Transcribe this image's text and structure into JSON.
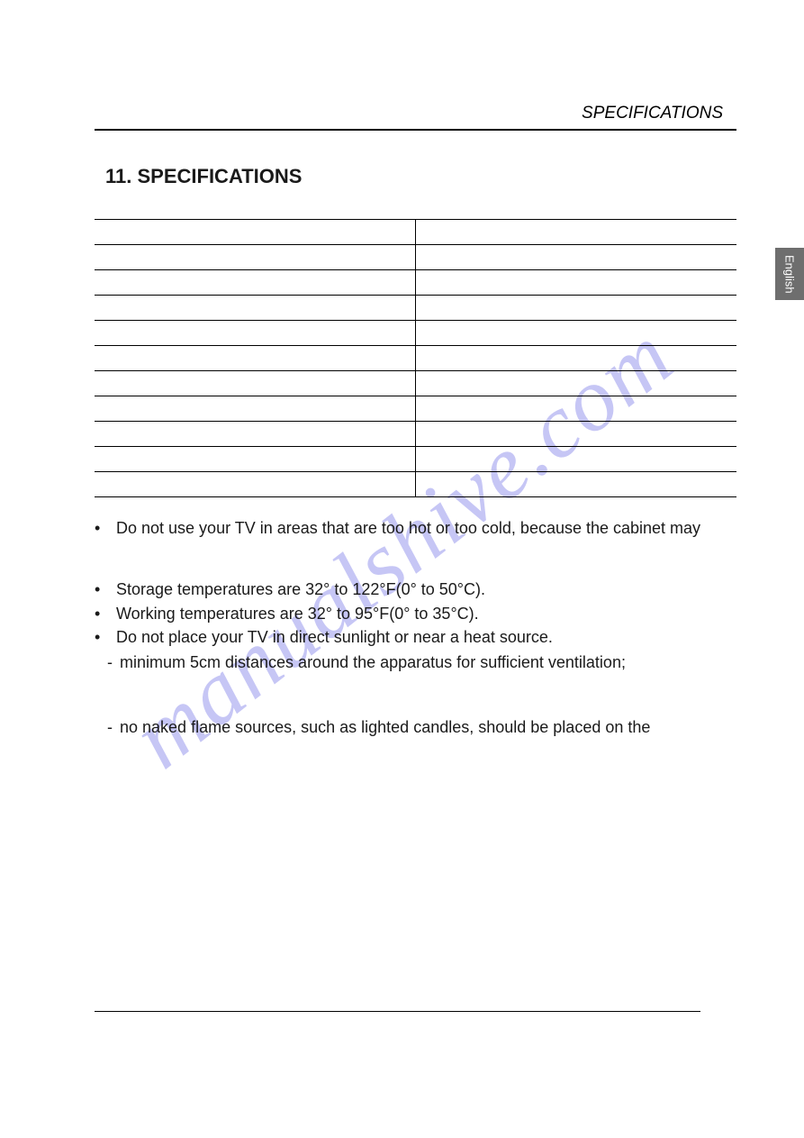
{
  "header": {
    "section_label": "SPECIFICATIONS"
  },
  "title": "11. SPECIFICATIONS",
  "table": {
    "rows": 11,
    "columns": 2,
    "border_color": "#000000"
  },
  "notes": {
    "b1": "Do not use your TV in areas that are too hot or too cold, because the cabinet may",
    "b2": "Storage temperatures are 32° to 122°F(0° to 50°C).",
    "b3": "Working temperatures are 32° to 95°F(0° to 35°C).",
    "b4": "Do not place your TV in direct sunlight or near a heat source.",
    "d1": "minimum 5cm distances around the apparatus for sufficient ventilation;",
    "d2": "no naked flame sources, such as lighted candles, should be placed on the"
  },
  "language_tab": "English",
  "watermark_text": "manualshive.com",
  "colors": {
    "text": "#1a1a1a",
    "rule": "#000000",
    "tab_bg": "#6e6e6e",
    "tab_text": "#ffffff",
    "watermark": "rgba(120,120,230,0.42)",
    "background": "#ffffff"
  }
}
